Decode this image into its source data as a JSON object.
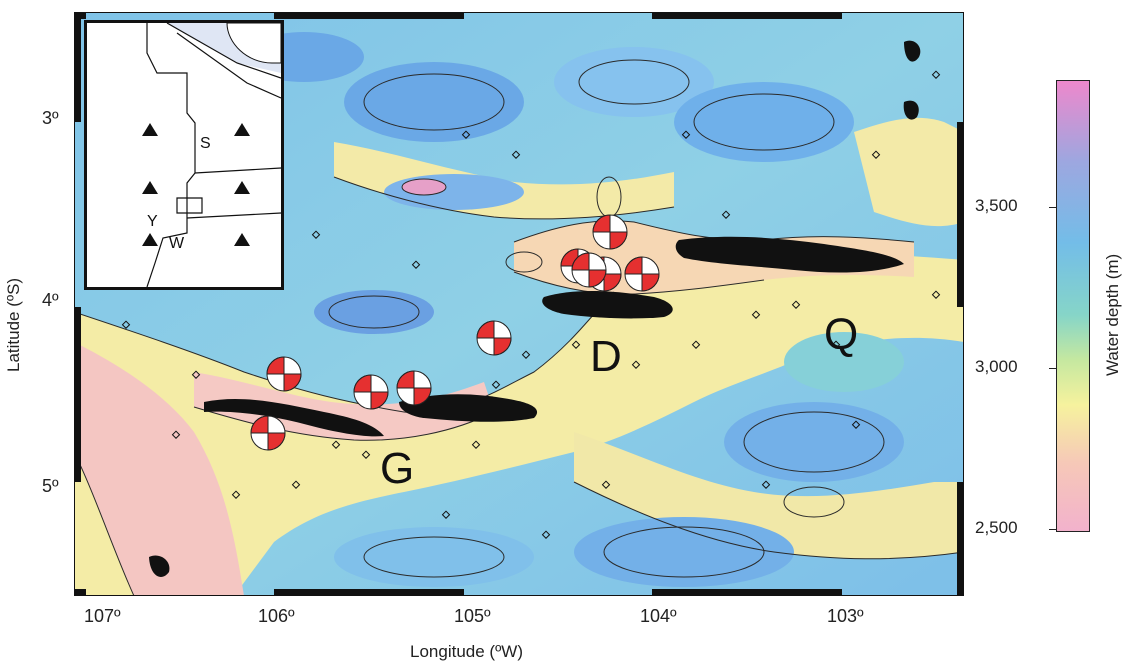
{
  "map": {
    "x_axis_title": "Longitude (ºW)",
    "y_axis_title": "Latitude (ºS)",
    "x_ticks": [
      "107º",
      "106º",
      "105º",
      "104º",
      "103º"
    ],
    "y_ticks": [
      "3º",
      "4º",
      "5º"
    ],
    "region_labels": {
      "g": "G",
      "d": "D",
      "q": "Q"
    },
    "colors": {
      "shallow": "#f2b8c8",
      "mid": "#f6f0a0",
      "deep": "#7ec6e6",
      "deepest": "#5a8fd8",
      "focal_red": "#e53030",
      "earthquake": "#111111"
    }
  },
  "inset": {
    "label_s": "S",
    "label_y": "Y",
    "label_w": "W"
  },
  "colorbar": {
    "title": "Water depth (m)",
    "ticks": [
      "3,500",
      "3,000",
      "2,500"
    ],
    "colors_top_to_bottom": [
      "#ee88cc",
      "#9da7e0",
      "#73bde8",
      "#86d5c8",
      "#c5e8a0",
      "#f6f29e",
      "#f6c8b8",
      "#f2b2cc"
    ]
  }
}
